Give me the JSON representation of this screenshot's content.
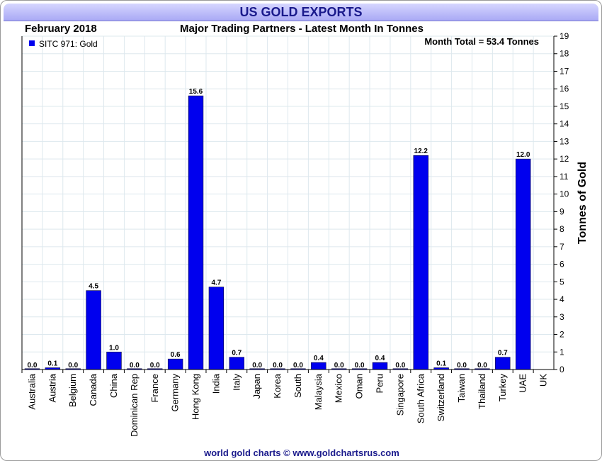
{
  "header": {
    "title": "US GOLD EXPORTS",
    "date": "February 2018",
    "subtitle": "Major Trading Partners - Latest Month In Tonnes"
  },
  "footer": {
    "credit": "world gold charts © www.goldchartsrus.com"
  },
  "colors": {
    "bar": "#0000ee",
    "title": "#1a1a8c",
    "grid": "#dde8ee"
  },
  "chart_data": {
    "type": "bar",
    "title": "US GOLD EXPORTS",
    "ylabel": "Tonnes of Gold",
    "xlabel": "",
    "ylim": [
      0,
      19
    ],
    "yticks": [
      0,
      1,
      2,
      3,
      4,
      5,
      6,
      7,
      8,
      9,
      10,
      11,
      12,
      13,
      14,
      15,
      16,
      17,
      18,
      19
    ],
    "grid": true,
    "legend": {
      "label": "SITC 971: Gold",
      "position": "top-left"
    },
    "annotation": "Month Total = 53.4 Tonnes",
    "categories": [
      "Australia",
      "Austria",
      "Belgium",
      "Canada",
      "China",
      "Dominican Rep",
      "France",
      "Germany",
      "Hong Kong",
      "India",
      "Italy",
      "Japan",
      "Korea",
      "South",
      "Malaysia",
      "Mexico",
      "Oman",
      "Peru",
      "Singapore",
      "South Africa",
      "Switzerland",
      "Taiwan",
      "Thailand",
      "Turkey",
      "UAE",
      "UK"
    ],
    "values": [
      0.0,
      0.1,
      0.0,
      4.5,
      1.0,
      0.0,
      0.0,
      0.6,
      15.6,
      4.7,
      0.7,
      0.0,
      0.0,
      0.0,
      0.4,
      0.0,
      0.0,
      0.4,
      0.0,
      12.2,
      0.1,
      0.0,
      0.0,
      0.7,
      12.0,
      null
    ],
    "value_labels": [
      "0.0",
      "0.1",
      "0.0",
      "4.5",
      "1.0",
      "0.0",
      "0.0",
      "0.6",
      "15.6",
      "4.7",
      "0.7",
      "0.0",
      "0.0",
      "0.0",
      "0.4",
      "0.0",
      "0.0",
      "0.4",
      "0.0",
      "12.2",
      "0.1",
      "0.0",
      "0.0",
      "0.7",
      "12.0",
      ""
    ]
  }
}
